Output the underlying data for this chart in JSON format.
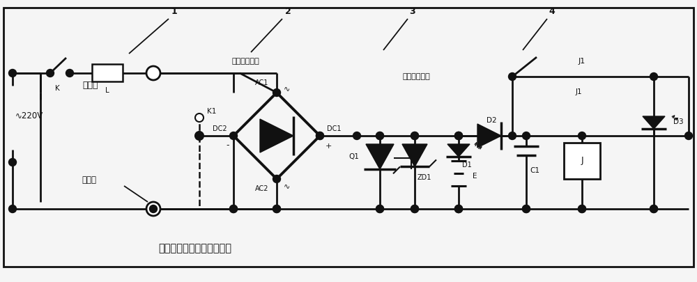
{
  "title": "一种基于用电器的充电电路",
  "bg_color": "#f5f5f5",
  "line_color": "#111111",
  "label1": "1",
  "label2": "2",
  "label3": "3",
  "label4": "4",
  "text_bridge": "桥式整流电路",
  "text_bypass": "旁路保护电路",
  "text_ac220": "∿220V",
  "text_device": "用电器",
  "text_terminal": "接线柱",
  "text_K": "K",
  "text_L": "L",
  "text_K1": "K1",
  "text_AC1": "AC1",
  "text_AC2": "AC2",
  "text_DC1": "DC1",
  "text_DC2": "DC2",
  "text_Q1": "Q1",
  "text_ZD1": "ZD1",
  "text_D1": "D1",
  "text_D2": "D2",
  "text_D3": "D3",
  "text_E": "E",
  "text_C1": "C1",
  "text_J": "J",
  "text_J1": "J1",
  "text_plus": "+",
  "text_minus": "-"
}
